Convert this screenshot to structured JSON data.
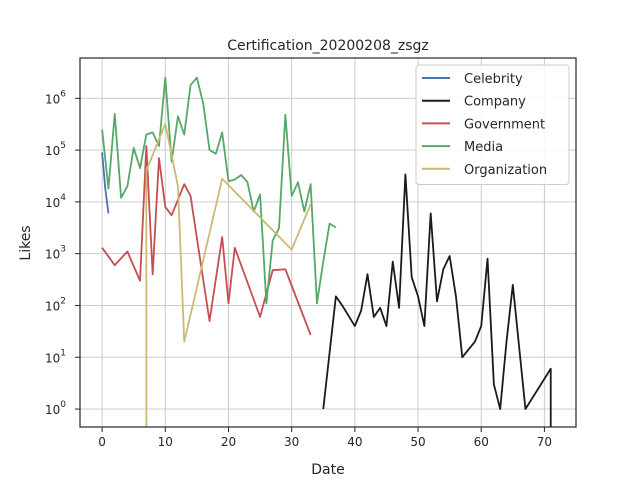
{
  "chart_data": {
    "type": "line",
    "title": "Certification_20200208_zsgz",
    "xlabel": "Date",
    "ylabel": "Likes",
    "yscale": "log",
    "xlim": [
      -3.5,
      75
    ],
    "ylim": [
      0.45,
      6000000
    ],
    "xticks": [
      0,
      10,
      20,
      30,
      40,
      50,
      60,
      70
    ],
    "xtick_labels": [
      "0",
      "10",
      "20",
      "30",
      "40",
      "50",
      "60",
      "70"
    ],
    "yticks": [
      1,
      10,
      100,
      1000,
      10000,
      100000,
      1000000
    ],
    "ytick_labels": [
      {
        "base": "10",
        "exp": "0"
      },
      {
        "base": "10",
        "exp": "1"
      },
      {
        "base": "10",
        "exp": "2"
      },
      {
        "base": "10",
        "exp": "3"
      },
      {
        "base": "10",
        "exp": "4"
      },
      {
        "base": "10",
        "exp": "5"
      },
      {
        "base": "10",
        "exp": "6"
      }
    ],
    "grid": true,
    "legend_position": "top-right",
    "series": [
      {
        "name": "Celebrity",
        "color": "#4c72b0",
        "points": [
          [
            0,
            90000
          ],
          [
            0.5,
            18000
          ],
          [
            1,
            6000
          ]
        ]
      },
      {
        "name": "Company",
        "color": "#1a1a1a",
        "points": [
          [
            35,
            1
          ],
          [
            37,
            150
          ],
          [
            38,
            100
          ],
          [
            40,
            40
          ],
          [
            41,
            80
          ],
          [
            42,
            400
          ],
          [
            43,
            60
          ],
          [
            44,
            90
          ],
          [
            45,
            40
          ],
          [
            46,
            700
          ],
          [
            47,
            90
          ],
          [
            48,
            34000
          ],
          [
            49,
            350
          ],
          [
            50,
            150
          ],
          [
            51,
            40
          ],
          [
            52,
            6000
          ],
          [
            53,
            120
          ],
          [
            54,
            500
          ],
          [
            55,
            900
          ],
          [
            56,
            150
          ],
          [
            57,
            10
          ],
          [
            59,
            20
          ],
          [
            60,
            40
          ],
          [
            61,
            800
          ],
          [
            62,
            3
          ],
          [
            63,
            1
          ],
          [
            64,
            20
          ],
          [
            65,
            250
          ],
          [
            67,
            1
          ],
          [
            71,
            6
          ],
          [
            71,
            0.3
          ]
        ]
      },
      {
        "name": "Government",
        "color": "#c44e52",
        "points": [
          [
            0,
            1300
          ],
          [
            2,
            600
          ],
          [
            4,
            1100
          ],
          [
            6,
            300
          ],
          [
            7,
            120000
          ],
          [
            8,
            400
          ],
          [
            9,
            70000
          ],
          [
            10,
            8000
          ],
          [
            11,
            5500
          ],
          [
            13,
            22000
          ],
          [
            14,
            13000
          ],
          [
            15,
            2000
          ],
          [
            17,
            50
          ],
          [
            19,
            2100
          ],
          [
            20,
            110
          ],
          [
            21,
            1300
          ],
          [
            25,
            60
          ],
          [
            27,
            480
          ],
          [
            29,
            500
          ],
          [
            33,
            27
          ]
        ]
      },
      {
        "name": "Media",
        "color": "#55a868",
        "points": [
          [
            0,
            250000
          ],
          [
            1,
            18000
          ],
          [
            2,
            500000
          ],
          [
            3,
            12000
          ],
          [
            4,
            20000
          ],
          [
            5,
            110000
          ],
          [
            6,
            45000
          ],
          [
            7,
            200000
          ],
          [
            8,
            220000
          ],
          [
            9,
            120000
          ],
          [
            10,
            2500000
          ],
          [
            11,
            60000
          ],
          [
            12,
            450000
          ],
          [
            13,
            200000
          ],
          [
            14,
            1800000
          ],
          [
            15,
            2500000
          ],
          [
            16,
            800000
          ],
          [
            17,
            100000
          ],
          [
            18,
            85000
          ],
          [
            19,
            220000
          ],
          [
            20,
            25000
          ],
          [
            21,
            27000
          ],
          [
            22,
            33000
          ],
          [
            23,
            24000
          ],
          [
            24,
            6500
          ],
          [
            25,
            14000
          ],
          [
            26,
            110
          ],
          [
            27,
            1800
          ],
          [
            28,
            3100
          ],
          [
            29,
            480000
          ],
          [
            30,
            13000
          ],
          [
            31,
            24000
          ],
          [
            32,
            6500
          ],
          [
            33,
            22000
          ],
          [
            34,
            110
          ],
          [
            35,
            700
          ],
          [
            36,
            3800
          ],
          [
            37,
            3200
          ]
        ]
      },
      {
        "name": "Organization",
        "color": "#ccb974",
        "points": [
          [
            7,
            0.3
          ],
          [
            7,
            40000
          ],
          [
            10,
            320000
          ],
          [
            12,
            20000
          ],
          [
            13,
            20
          ],
          [
            19,
            28000
          ],
          [
            30,
            1200
          ],
          [
            33,
            9000
          ]
        ]
      }
    ]
  }
}
